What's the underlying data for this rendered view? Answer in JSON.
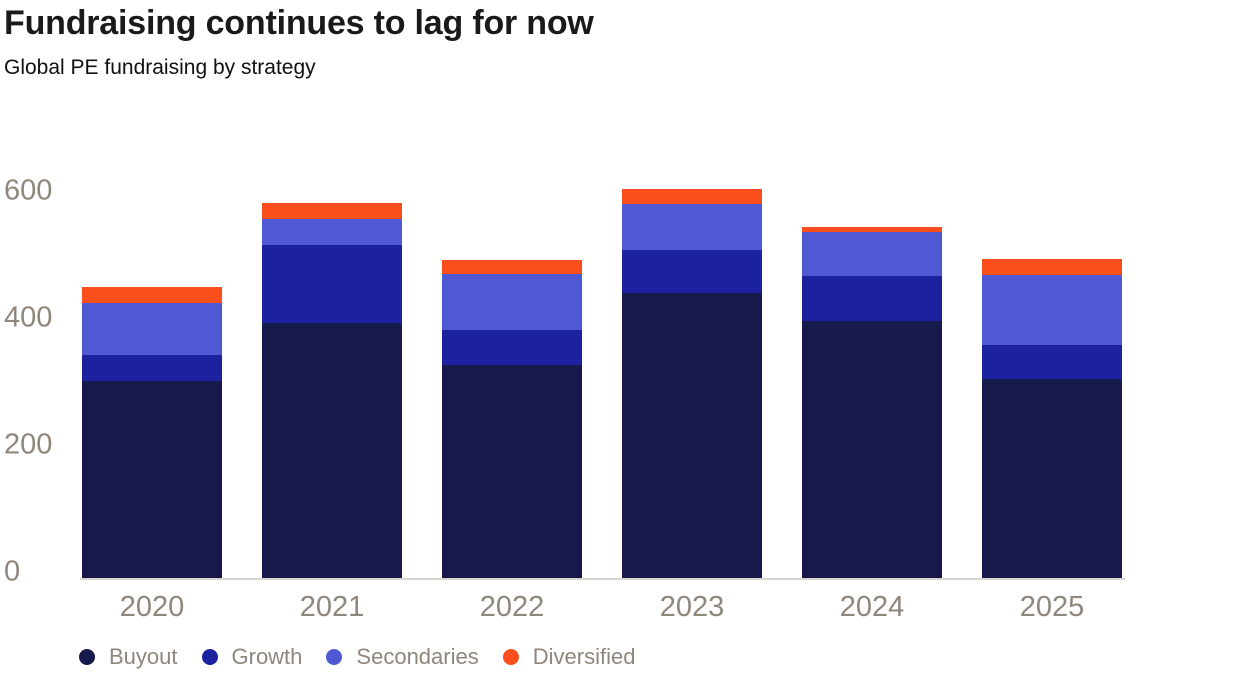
{
  "header": {
    "title": "Fundraising continues to lag for now",
    "subtitle": "Global PE fundraising by strategy"
  },
  "colors": {
    "buyout": "#171a4b",
    "growth": "#1c21a0",
    "secondaries": "#5059d4",
    "diversified": "#fa4e1c",
    "axis_text": "#8f867c",
    "baseline": "#d8d5d1",
    "title_text": "#1a1a1a",
    "subtitle_text": "#111111"
  },
  "chart_data": {
    "type": "bar",
    "stacked": true,
    "title": "Fundraising continues to lag for now",
    "subtitle": "Global PE fundraising by strategy",
    "xlabel": "",
    "ylabel": "",
    "categories": [
      "2020",
      "2021",
      "2022",
      "2023",
      "2024",
      "2025"
    ],
    "series": [
      {
        "name": "Buyout",
        "color_key": "buyout",
        "values": [
          305,
          395,
          330,
          440,
          397,
          308
        ]
      },
      {
        "name": "Growth",
        "color_key": "growth",
        "values": [
          40,
          120,
          53,
          68,
          70,
          53
        ]
      },
      {
        "name": "Secondaries",
        "color_key": "secondaries",
        "values": [
          80,
          40,
          87,
          70,
          68,
          107
        ]
      },
      {
        "name": "Diversified",
        "color_key": "diversified",
        "values": [
          25,
          25,
          22,
          24,
          8,
          25
        ]
      }
    ],
    "totals": [
      450,
      580,
      492,
      602,
      543,
      493
    ],
    "y_ticks": [
      0,
      200,
      400,
      600
    ],
    "ylim": [
      0,
      620
    ],
    "grid": false,
    "legend_position": "bottom"
  }
}
